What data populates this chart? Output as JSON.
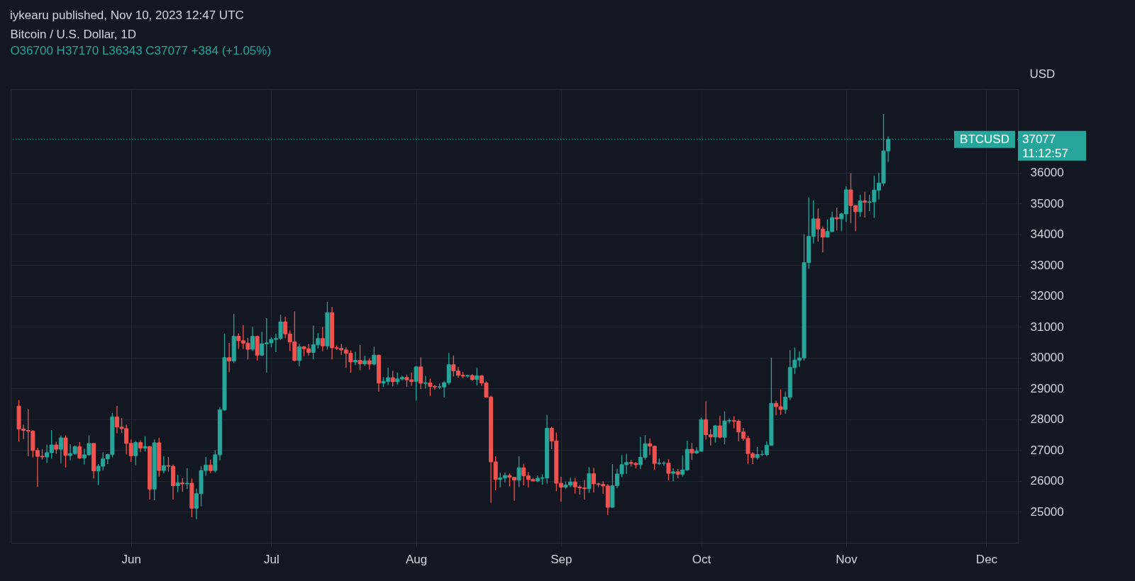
{
  "chart_data": {
    "type": "candlestick",
    "title": "Bitcoin / U.S. Dollar, 1D",
    "subtitle": "O36700 H37170 L36343 C37077 +384 (+1.05%)",
    "ylabel": "USD",
    "annotations": [
      "iykearu published, Nov 10, 2023 12:47 UTC",
      "37077",
      "11:12:57"
    ],
    "x": [
      "2023-05-08",
      "2023-05-09",
      "2023-05-10",
      "2023-05-11",
      "2023-05-12",
      "2023-05-13",
      "2023-05-14",
      "2023-05-15",
      "2023-05-16",
      "2023-05-17",
      "2023-05-18",
      "2023-05-19",
      "2023-05-20",
      "2023-05-21",
      "2023-05-22",
      "2023-05-23",
      "2023-05-24",
      "2023-05-25",
      "2023-05-26",
      "2023-05-27",
      "2023-05-28",
      "2023-05-29",
      "2023-05-30",
      "2023-05-31",
      "2023-06-01",
      "2023-06-02",
      "2023-06-03",
      "2023-06-04",
      "2023-06-05",
      "2023-06-06",
      "2023-06-07",
      "2023-06-08",
      "2023-06-09",
      "2023-06-10",
      "2023-06-11",
      "2023-06-12",
      "2023-06-13",
      "2023-06-14",
      "2023-06-15",
      "2023-06-16",
      "2023-06-17",
      "2023-06-18",
      "2023-06-19",
      "2023-06-20",
      "2023-06-21",
      "2023-06-22",
      "2023-06-23",
      "2023-06-24",
      "2023-06-25",
      "2023-06-26",
      "2023-06-27",
      "2023-06-28",
      "2023-06-29",
      "2023-06-30",
      "2023-07-01",
      "2023-07-02",
      "2023-07-03",
      "2023-07-04",
      "2023-07-05",
      "2023-07-06",
      "2023-07-07",
      "2023-07-08",
      "2023-07-09",
      "2023-07-10",
      "2023-07-11",
      "2023-07-12",
      "2023-07-13",
      "2023-07-14",
      "2023-07-15",
      "2023-07-16",
      "2023-07-17",
      "2023-07-18",
      "2023-07-19",
      "2023-07-20",
      "2023-07-21",
      "2023-07-22",
      "2023-07-23",
      "2023-07-24",
      "2023-07-25",
      "2023-07-26",
      "2023-07-27",
      "2023-07-28",
      "2023-07-29",
      "2023-07-30",
      "2023-07-31",
      "2023-08-01",
      "2023-08-02",
      "2023-08-03",
      "2023-08-04",
      "2023-08-05",
      "2023-08-06",
      "2023-08-07",
      "2023-08-08",
      "2023-08-09",
      "2023-08-10",
      "2023-08-11",
      "2023-08-12",
      "2023-08-13",
      "2023-08-14",
      "2023-08-15",
      "2023-08-16",
      "2023-08-17",
      "2023-08-18",
      "2023-08-19",
      "2023-08-20",
      "2023-08-21",
      "2023-08-22",
      "2023-08-23",
      "2023-08-24",
      "2023-08-25",
      "2023-08-26",
      "2023-08-27",
      "2023-08-28",
      "2023-08-29",
      "2023-08-30",
      "2023-08-31",
      "2023-09-01",
      "2023-09-02",
      "2023-09-03",
      "2023-09-04",
      "2023-09-05",
      "2023-09-06",
      "2023-09-07",
      "2023-09-08",
      "2023-09-09",
      "2023-09-10",
      "2023-09-11",
      "2023-09-12",
      "2023-09-13",
      "2023-09-14",
      "2023-09-15",
      "2023-09-16",
      "2023-09-17",
      "2023-09-18",
      "2023-09-19",
      "2023-09-20",
      "2023-09-21",
      "2023-09-22",
      "2023-09-23",
      "2023-09-24",
      "2023-09-25",
      "2023-09-26",
      "2023-09-27",
      "2023-09-28",
      "2023-09-29",
      "2023-09-30",
      "2023-10-01",
      "2023-10-02",
      "2023-10-03",
      "2023-10-04",
      "2023-10-05",
      "2023-10-06",
      "2023-10-07",
      "2023-10-08",
      "2023-10-09",
      "2023-10-10",
      "2023-10-11",
      "2023-10-12",
      "2023-10-13",
      "2023-10-14",
      "2023-10-15",
      "2023-10-16",
      "2023-10-17",
      "2023-10-18",
      "2023-10-19",
      "2023-10-20",
      "2023-10-21",
      "2023-10-22",
      "2023-10-23",
      "2023-10-24",
      "2023-10-25",
      "2023-10-26",
      "2023-10-27",
      "2023-10-28",
      "2023-10-29",
      "2023-10-30",
      "2023-10-31",
      "2023-11-01",
      "2023-11-02",
      "2023-11-03",
      "2023-11-04",
      "2023-11-05",
      "2023-11-06",
      "2023-11-07",
      "2023-11-08",
      "2023-11-09",
      "2023-11-10"
    ],
    "ohlc": [
      [
        28430,
        28630,
        27290,
        27690
      ],
      [
        27690,
        27830,
        27360,
        27640
      ],
      [
        27640,
        28330,
        26800,
        27620
      ],
      [
        27620,
        27650,
        26770,
        26990
      ],
      [
        26990,
        27080,
        25810,
        26800
      ],
      [
        26800,
        27030,
        26700,
        26780
      ],
      [
        26780,
        27180,
        26590,
        26920
      ],
      [
        26920,
        27650,
        26730,
        27170
      ],
      [
        27170,
        27270,
        26880,
        27030
      ],
      [
        27030,
        27480,
        26580,
        27400
      ],
      [
        27400,
        27480,
        26440,
        26830
      ],
      [
        26830,
        27190,
        26670,
        26890
      ],
      [
        26890,
        27150,
        26850,
        27110
      ],
      [
        27110,
        27260,
        26710,
        26750
      ],
      [
        26750,
        27050,
        26540,
        26850
      ],
      [
        26850,
        27480,
        26820,
        27220
      ],
      [
        27220,
        27220,
        26080,
        26330
      ],
      [
        26330,
        26550,
        25870,
        26480
      ],
      [
        26480,
        26930,
        26340,
        26720
      ],
      [
        26720,
        26890,
        26550,
        26860
      ],
      [
        26860,
        28200,
        26780,
        28080
      ],
      [
        28080,
        28440,
        27550,
        27750
      ],
      [
        27750,
        28040,
        27560,
        27700
      ],
      [
        27700,
        27830,
        26860,
        27220
      ],
      [
        27220,
        27350,
        26620,
        26820
      ],
      [
        26820,
        27300,
        26510,
        27250
      ],
      [
        27250,
        27320,
        26940,
        27070
      ],
      [
        27070,
        27450,
        26960,
        27120
      ],
      [
        27120,
        27130,
        25400,
        25740
      ],
      [
        25740,
        27350,
        25380,
        27240
      ],
      [
        27240,
        27400,
        26140,
        26340
      ],
      [
        26340,
        26800,
        26250,
        26500
      ],
      [
        26500,
        26780,
        26310,
        26480
      ],
      [
        26480,
        26530,
        25400,
        25850
      ],
      [
        25850,
        26200,
        25640,
        25940
      ],
      [
        25940,
        26090,
        25650,
        25910
      ],
      [
        25910,
        26420,
        25740,
        25930
      ],
      [
        25930,
        26080,
        24830,
        25120
      ],
      [
        25120,
        25750,
        24760,
        25590
      ],
      [
        25590,
        26480,
        25180,
        26340
      ],
      [
        26340,
        26780,
        26170,
        26520
      ],
      [
        26520,
        26700,
        26260,
        26340
      ],
      [
        26340,
        26990,
        26280,
        26850
      ],
      [
        26850,
        28400,
        26670,
        28310
      ],
      [
        28310,
        30770,
        28280,
        30000
      ],
      [
        30000,
        30480,
        29530,
        29890
      ],
      [
        29890,
        31420,
        29830,
        30690
      ],
      [
        30690,
        30790,
        30280,
        30550
      ],
      [
        30550,
        31060,
        30280,
        30470
      ],
      [
        30470,
        30640,
        29940,
        30270
      ],
      [
        30270,
        31000,
        30220,
        30690
      ],
      [
        30690,
        30710,
        29910,
        30080
      ],
      [
        30080,
        30840,
        30050,
        30450
      ],
      [
        30450,
        31280,
        29520,
        30480
      ],
      [
        30480,
        30660,
        30340,
        30590
      ],
      [
        30590,
        30780,
        30180,
        30620
      ],
      [
        30620,
        31390,
        30570,
        31160
      ],
      [
        31160,
        31330,
        30630,
        30770
      ],
      [
        30770,
        30880,
        30220,
        30510
      ],
      [
        30510,
        31500,
        29880,
        29910
      ],
      [
        29910,
        30450,
        29720,
        30350
      ],
      [
        30350,
        30380,
        30050,
        30290
      ],
      [
        30290,
        30440,
        30070,
        30170
      ],
      [
        30170,
        31040,
        29950,
        30420
      ],
      [
        30420,
        30800,
        30300,
        30620
      ],
      [
        30620,
        30990,
        30210,
        30380
      ],
      [
        30380,
        31810,
        30260,
        31460
      ],
      [
        31460,
        31640,
        29940,
        30320
      ],
      [
        30320,
        30390,
        30250,
        30300
      ],
      [
        30300,
        30450,
        30090,
        30250
      ],
      [
        30250,
        30340,
        29670,
        30140
      ],
      [
        30140,
        30240,
        29510,
        29860
      ],
      [
        29860,
        30190,
        29760,
        29910
      ],
      [
        29910,
        30410,
        29590,
        29800
      ],
      [
        29800,
        30060,
        29740,
        29900
      ],
      [
        29900,
        29980,
        29610,
        29790
      ],
      [
        29790,
        30350,
        29750,
        30080
      ],
      [
        30080,
        30100,
        28900,
        29180
      ],
      [
        29180,
        29370,
        29050,
        29230
      ],
      [
        29230,
        29680,
        29110,
        29350
      ],
      [
        29350,
        29570,
        29070,
        29220
      ],
      [
        29220,
        29520,
        29130,
        29310
      ],
      [
        29310,
        29410,
        29260,
        29360
      ],
      [
        29360,
        29450,
        29050,
        29280
      ],
      [
        29280,
        29520,
        29090,
        29230
      ],
      [
        29230,
        29730,
        28610,
        29700
      ],
      [
        29700,
        30010,
        28980,
        29170
      ],
      [
        29170,
        29410,
        29010,
        29180
      ],
      [
        29180,
        29320,
        28760,
        29070
      ],
      [
        29070,
        29120,
        28960,
        29050
      ],
      [
        29050,
        29170,
        28980,
        29050
      ],
      [
        29050,
        29240,
        28710,
        29190
      ],
      [
        29190,
        30150,
        29120,
        29770
      ],
      [
        29770,
        30070,
        29390,
        29570
      ],
      [
        29570,
        29700,
        29350,
        29430
      ],
      [
        29430,
        29540,
        29330,
        29400
      ],
      [
        29400,
        29450,
        29360,
        29420
      ],
      [
        29420,
        29460,
        29260,
        29290
      ],
      [
        29290,
        29660,
        29100,
        29410
      ],
      [
        29410,
        29440,
        29080,
        29180
      ],
      [
        29180,
        29230,
        28700,
        28720
      ],
      [
        28720,
        28770,
        25300,
        26620
      ],
      [
        26620,
        26800,
        25700,
        26050
      ],
      [
        26050,
        26270,
        25800,
        26100
      ],
      [
        26100,
        26280,
        25960,
        26180
      ],
      [
        26180,
        26250,
        25830,
        26120
      ],
      [
        26120,
        26130,
        25360,
        26030
      ],
      [
        26030,
        26800,
        25800,
        26430
      ],
      [
        26430,
        26560,
        25860,
        26170
      ],
      [
        26170,
        26290,
        25790,
        26050
      ],
      [
        26050,
        26100,
        25990,
        26000
      ],
      [
        26000,
        26180,
        25970,
        26090
      ],
      [
        26090,
        26220,
        25880,
        26100
      ],
      [
        26100,
        28140,
        25920,
        27710
      ],
      [
        27710,
        27760,
        27030,
        27300
      ],
      [
        27300,
        27570,
        25670,
        25930
      ],
      [
        25930,
        26140,
        25330,
        25800
      ],
      [
        25800,
        25980,
        25740,
        25870
      ],
      [
        25870,
        26110,
        25800,
        25970
      ],
      [
        25970,
        26100,
        25600,
        25810
      ],
      [
        25810,
        25870,
        25560,
        25780
      ],
      [
        25780,
        26030,
        25400,
        25750
      ],
      [
        25750,
        26450,
        25620,
        26240
      ],
      [
        26240,
        26430,
        25630,
        25910
      ],
      [
        25910,
        25940,
        25800,
        25890
      ],
      [
        25890,
        25990,
        25580,
        25840
      ],
      [
        25840,
        25900,
        24900,
        25150
      ],
      [
        25150,
        26550,
        25130,
        25850
      ],
      [
        25850,
        26400,
        25770,
        26230
      ],
      [
        26230,
        26840,
        26130,
        26530
      ],
      [
        26530,
        26890,
        26230,
        26600
      ],
      [
        26600,
        26680,
        26470,
        26570
      ],
      [
        26570,
        26620,
        26410,
        26530
      ],
      [
        26530,
        27430,
        26390,
        26770
      ],
      [
        26770,
        27490,
        26700,
        27210
      ],
      [
        27210,
        27380,
        26840,
        27130
      ],
      [
        27130,
        27150,
        26370,
        26570
      ],
      [
        26570,
        26730,
        26520,
        26580
      ],
      [
        26580,
        26640,
        26500,
        26580
      ],
      [
        26580,
        26710,
        26020,
        26250
      ],
      [
        26250,
        26410,
        25990,
        26300
      ],
      [
        26300,
        26390,
        26090,
        26220
      ],
      [
        26220,
        26830,
        26150,
        26360
      ],
      [
        26360,
        27310,
        26330,
        27030
      ],
      [
        27030,
        27230,
        26680,
        26910
      ],
      [
        26910,
        27090,
        26880,
        26970
      ],
      [
        26970,
        28060,
        26950,
        27990
      ],
      [
        27990,
        28590,
        27340,
        27500
      ],
      [
        27500,
        27680,
        27150,
        27430
      ],
      [
        27430,
        27820,
        27250,
        27790
      ],
      [
        27790,
        28120,
        27380,
        27420
      ],
      [
        27420,
        28260,
        27190,
        27950
      ],
      [
        27950,
        28030,
        27870,
        27960
      ],
      [
        27960,
        28100,
        27710,
        27940
      ],
      [
        27940,
        27990,
        27290,
        27590
      ],
      [
        27590,
        27720,
        27310,
        27380
      ],
      [
        27380,
        27470,
        26560,
        26890
      ],
      [
        26890,
        26940,
        26550,
        26760
      ],
      [
        26760,
        27100,
        26700,
        26860
      ],
      [
        26860,
        26990,
        26810,
        26860
      ],
      [
        26860,
        27290,
        26800,
        27160
      ],
      [
        27160,
        30000,
        27140,
        28520
      ],
      [
        28520,
        28610,
        28130,
        28410
      ],
      [
        28410,
        28970,
        28160,
        28320
      ],
      [
        28320,
        28910,
        28180,
        28720
      ],
      [
        28720,
        30240,
        28630,
        29680
      ],
      [
        29680,
        30330,
        29470,
        29920
      ],
      [
        29920,
        30200,
        29700,
        29990
      ],
      [
        29990,
        34000,
        29900,
        33080
      ],
      [
        33080,
        35200,
        32880,
        33930
      ],
      [
        33930,
        35100,
        33700,
        34500
      ],
      [
        34500,
        34830,
        33760,
        34170
      ],
      [
        34170,
        34250,
        33410,
        33910
      ],
      [
        33910,
        34480,
        33890,
        34090
      ],
      [
        34090,
        34730,
        34060,
        34540
      ],
      [
        34540,
        34860,
        34120,
        34500
      ],
      [
        34500,
        34700,
        34100,
        34660
      ],
      [
        34660,
        35560,
        34400,
        35440
      ],
      [
        35440,
        35980,
        34360,
        34930
      ],
      [
        34930,
        34950,
        34100,
        34730
      ],
      [
        34730,
        35280,
        34570,
        35080
      ],
      [
        35080,
        35380,
        34540,
        35040
      ],
      [
        35040,
        35280,
        34750,
        35050
      ],
      [
        35050,
        35900,
        34530,
        35430
      ],
      [
        35430,
        35990,
        35130,
        35660
      ],
      [
        35660,
        37900,
        35560,
        36700
      ],
      [
        36700,
        37170,
        36343,
        37077
      ]
    ],
    "colors": [
      "#ef5350",
      "#ef5350",
      "#ef5350",
      "#ef5350",
      "#ef5350",
      "#ef5350",
      "#26a69a",
      "#26a69a",
      "#ef5350",
      "#26a69a",
      "#ef5350",
      "#26a69a",
      "#26a69a",
      "#ef5350",
      "#26a69a",
      "#26a69a",
      "#ef5350",
      "#26a69a",
      "#26a69a",
      "#26a69a",
      "#26a69a",
      "#ef5350",
      "#ef5350",
      "#ef5350",
      "#ef5350",
      "#26a69a",
      "#ef5350",
      "#26a69a",
      "#ef5350",
      "#26a69a",
      "#ef5350",
      "#26a69a",
      "#ef5350",
      "#ef5350",
      "#26a69a",
      "#ef5350",
      "#26a69a",
      "#ef5350",
      "#26a69a",
      "#26a69a",
      "#26a69a",
      "#ef5350",
      "#26a69a",
      "#26a69a",
      "#26a69a",
      "#ef5350",
      "#26a69a",
      "#ef5350",
      "#ef5350",
      "#ef5350",
      "#26a69a",
      "#ef5350",
      "#26a69a",
      "#26a69a",
      "#26a69a",
      "#26a69a",
      "#26a69a",
      "#ef5350",
      "#ef5350",
      "#ef5350",
      "#26a69a",
      "#ef5350",
      "#ef5350",
      "#26a69a",
      "#26a69a",
      "#ef5350",
      "#26a69a",
      "#ef5350",
      "#ef5350",
      "#ef5350",
      "#ef5350",
      "#ef5350",
      "#26a69a",
      "#ef5350",
      "#26a69a",
      "#ef5350",
      "#26a69a",
      "#ef5350",
      "#26a69a",
      "#26a69a",
      "#ef5350",
      "#26a69a",
      "#26a69a",
      "#ef5350",
      "#ef5350",
      "#26a69a",
      "#ef5350",
      "#26a69a",
      "#ef5350",
      "#ef5350",
      "#26a69a",
      "#26a69a",
      "#26a69a",
      "#ef5350",
      "#ef5350",
      "#ef5350",
      "#26a69a",
      "#ef5350",
      "#26a69a",
      "#ef5350",
      "#ef5350",
      "#ef5350",
      "#ef5350",
      "#26a69a",
      "#26a69a",
      "#ef5350",
      "#ef5350",
      "#26a69a",
      "#ef5350",
      "#ef5350",
      "#ef5350",
      "#26a69a",
      "#26a69a",
      "#26a69a",
      "#ef5350",
      "#ef5350",
      "#ef5350",
      "#26a69a",
      "#26a69a",
      "#ef5350",
      "#ef5350",
      "#ef5350",
      "#26a69a",
      "#ef5350",
      "#ef5350",
      "#ef5350",
      "#ef5350",
      "#26a69a",
      "#26a69a",
      "#26a69a",
      "#26a69a",
      "#ef5350",
      "#ef5350",
      "#26a69a",
      "#26a69a",
      "#ef5350",
      "#ef5350",
      "#26a69a",
      "#26a69a",
      "#ef5350",
      "#26a69a",
      "#ef5350",
      "#26a69a",
      "#26a69a",
      "#ef5350",
      "#26a69a",
      "#26a69a",
      "#ef5350",
      "#ef5350",
      "#26a69a",
      "#ef5350",
      "#26a69a",
      "#26a69a",
      "#ef5350",
      "#ef5350",
      "#ef5350",
      "#ef5350",
      "#ef5350",
      "#26a69a",
      "#26a69a",
      "#26a69a",
      "#26a69a",
      "#ef5350",
      "#ef5350",
      "#26a69a",
      "#26a69a",
      "#26a69a",
      "#26a69a",
      "#26a69a",
      "#26a69a",
      "#26a69a",
      "#ef5350",
      "#ef5350",
      "#26a69a",
      "#26a69a",
      "#ef5350",
      "#26a69a",
      "#26a69a",
      "#ef5350",
      "#ef5350",
      "#26a69a",
      "#ef5350",
      "#26a69a",
      "#26a69a",
      "#26a69a",
      "#26a69a",
      "#26a69a"
    ],
    "xlim": [
      "2023-05-07",
      "2023-12-07"
    ],
    "xticks": [
      {
        "value": "2023-06-01",
        "label": "Jun"
      },
      {
        "value": "2023-07-01",
        "label": "Jul"
      },
      {
        "value": "2023-08-01",
        "label": "Aug"
      },
      {
        "value": "2023-09-01",
        "label": "Sep"
      },
      {
        "value": "2023-10-01",
        "label": "Oct"
      },
      {
        "value": "2023-11-01",
        "label": "Nov"
      },
      {
        "value": "2023-12-01",
        "label": "Dec"
      }
    ],
    "ylim": [
      24000,
      38700
    ],
    "yticks": [
      25000,
      26000,
      27000,
      28000,
      29000,
      30000,
      31000,
      32000,
      33000,
      34000,
      35000,
      36000
    ],
    "ref_lines": [
      {
        "axis": "y",
        "value": 37077,
        "label": "BTCUSD",
        "color": "#26a69a",
        "line_style": "dotted"
      }
    ],
    "grid": true
  }
}
